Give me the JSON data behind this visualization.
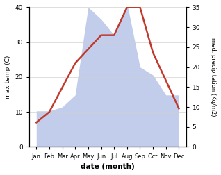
{
  "months": [
    "Jan",
    "Feb",
    "Mar",
    "Apr",
    "May",
    "Jun",
    "Jul",
    "Aug",
    "Sep",
    "Oct",
    "Nov",
    "Dec"
  ],
  "temp": [
    7,
    10,
    17,
    24,
    28,
    32,
    32,
    40,
    40,
    27,
    19,
    11
  ],
  "precip": [
    9,
    9,
    10,
    13,
    35,
    32,
    28,
    36,
    20,
    18,
    13,
    13
  ],
  "temp_color": "#c0392b",
  "precip_fill_color": "#b8c4e8",
  "ylabel_left": "max temp (C)",
  "ylabel_right": "med. precipitation (Kg/m2)",
  "xlabel": "date (month)",
  "ylim_left": [
    0,
    40
  ],
  "ylim_right": [
    0,
    35
  ],
  "yticks_left": [
    0,
    10,
    20,
    30,
    40
  ],
  "yticks_right": [
    0,
    5,
    10,
    15,
    20,
    25,
    30,
    35
  ],
  "bg_color": "#ffffff",
  "grid_color": "#d0d0d0"
}
